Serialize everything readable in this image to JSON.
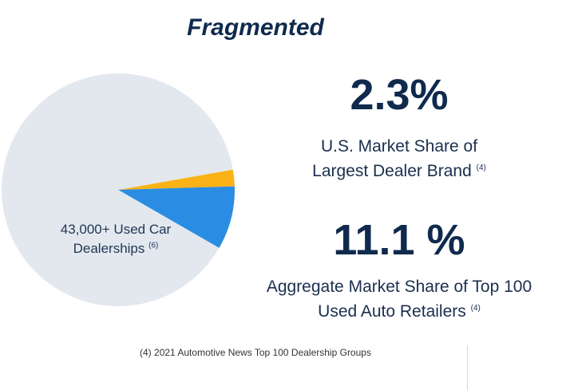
{
  "title": "Fragmented",
  "pie_label": {
    "line1": "43,000+ Used Car",
    "line2": "Dealerships",
    "note": "(6)"
  },
  "stats": [
    {
      "value": "2.3%",
      "line1": "U.S. Market Share of",
      "line2": "Largest Dealer Brand",
      "note": "(4)"
    },
    {
      "value": "11.1 %",
      "line1": "Aggregate Market Share of Top 100",
      "line2": "Used Auto Retailers",
      "note": "(4)"
    }
  ],
  "footnote": "(4) 2021 Automotive News Top 100 Dealership Groups",
  "colors": {
    "background_slice": "#e3e8ef",
    "largest_brand": "#fbb216",
    "top100_rest": "#2a8de3",
    "text_dark": "#0f2a4d"
  },
  "chart_data": {
    "type": "pie",
    "slices": [
      {
        "value": 2.3,
        "color": "#fbb216"
      },
      {
        "value": 8.8,
        "color": "#2a8de3"
      },
      {
        "value": 88.9,
        "color": "#e3e8ef"
      }
    ]
  }
}
